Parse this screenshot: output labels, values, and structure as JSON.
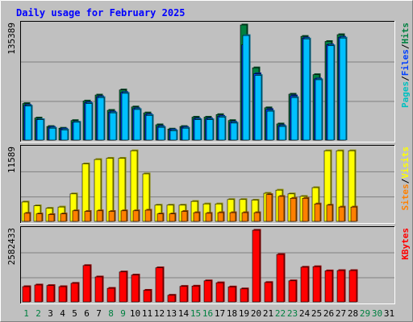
{
  "chart_data": {
    "type": "bar",
    "title": "Daily usage for February 2025",
    "days": [
      "1",
      "2",
      "3",
      "4",
      "5",
      "6",
      "7",
      "8",
      "9",
      "10",
      "11",
      "12",
      "13",
      "14",
      "15",
      "16",
      "17",
      "18",
      "19",
      "20",
      "21",
      "22",
      "23",
      "24",
      "25",
      "26",
      "27",
      "28",
      "29",
      "30",
      "31"
    ],
    "weekend_days": [
      "1",
      "2",
      "8",
      "9",
      "15",
      "16",
      "22",
      "23",
      "29",
      "30"
    ],
    "panels": [
      {
        "id": "hits",
        "ymax_label": "135389",
        "ymax": 135389,
        "legend": [
          "Pages",
          "/",
          "Files",
          "/",
          "Hits"
        ],
        "series": [
          {
            "name": "Hits",
            "color": "#008040",
            "values": [
              43000,
              26000,
              16000,
              14000,
              23000,
              46000,
              53000,
              35000,
              59000,
              39000,
              32000,
              18000,
              13000,
              16000,
              27000,
              27000,
              30000,
              23000,
              135389,
              85000,
              38000,
              19000,
              54000,
              122000,
              77000,
              116000,
              124000,
              0,
              0,
              0,
              0
            ]
          },
          {
            "name": "Files",
            "color": "#0040ff",
            "values": [
              41000,
              24000,
              15000,
              13000,
              21000,
              44000,
              51000,
              33000,
              56000,
              37000,
              30000,
              16000,
              12000,
              15000,
              25000,
              25000,
              28000,
              21000,
              112000,
              78000,
              36000,
              17000,
              52000,
              120000,
              72000,
              112000,
              121000,
              0,
              0,
              0,
              0
            ]
          },
          {
            "name": "Pages",
            "color": "#00c0ff",
            "values": [
              40000,
              24000,
              14000,
              12000,
              21000,
              43000,
              50000,
              32000,
              55000,
              36000,
              29000,
              15000,
              11000,
              14000,
              24000,
              24000,
              27000,
              20000,
              123000,
              76000,
              34000,
              16000,
              50000,
              119000,
              71000,
              111000,
              120000,
              0,
              0,
              0,
              0
            ]
          }
        ]
      },
      {
        "id": "visits",
        "ymax_label": "11589",
        "ymax": 11589,
        "legend": [
          "Sites",
          "/",
          "Visits"
        ],
        "series": [
          {
            "name": "Visits",
            "color": "#ffff00",
            "values": [
              3100,
              2500,
              2100,
              2300,
              4400,
              9200,
              9900,
              10100,
              10100,
              11300,
              7600,
              2600,
              2600,
              2600,
              3200,
              2800,
              2800,
              3500,
              3500,
              3400,
              4500,
              5000,
              4400,
              4000,
              5400,
              11300,
              11300,
              11300,
              0,
              0,
              0
            ]
          },
          {
            "name": "Sites",
            "color": "#ff8000",
            "values": [
              1300,
              1200,
              1100,
              1200,
              1700,
              1600,
              1700,
              1600,
              1700,
              1700,
              1800,
              1200,
              1200,
              1600,
              1400,
              1300,
              1400,
              1400,
              1400,
              1400,
              4300,
              4000,
              3700,
              3700,
              2800,
              2600,
              2300,
              2300,
              0,
              0,
              0
            ]
          }
        ]
      },
      {
        "id": "kbytes",
        "ymax_label": "2582433",
        "ymax": 2582433,
        "legend": [
          "KBytes"
        ],
        "series": [
          {
            "name": "KBytes",
            "color": "#ff0000",
            "values": [
              550000,
              610000,
              590000,
              550000,
              670000,
              1310000,
              900000,
              490000,
              1080000,
              970000,
              420000,
              1230000,
              240000,
              560000,
              570000,
              760000,
              690000,
              540000,
              470000,
              2582433,
              700000,
              1710000,
              760000,
              1250000,
              1270000,
              1120000,
              1130000,
              1130000,
              0,
              0,
              0
            ]
          }
        ]
      }
    ]
  }
}
